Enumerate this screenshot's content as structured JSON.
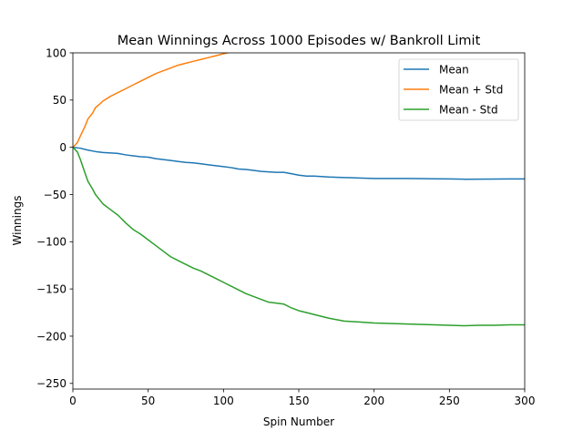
{
  "chart_data": {
    "type": "line",
    "title": "Mean Winnings Across 1000 Episodes w/ Bankroll Limit",
    "xlabel": "Spin Number",
    "ylabel": "Winnings",
    "xlim": [
      0,
      300
    ],
    "ylim": [
      -256,
      100
    ],
    "xticks": [
      0,
      50,
      100,
      150,
      200,
      250,
      300
    ],
    "yticks": [
      -250,
      -200,
      -150,
      -100,
      -50,
      0,
      50,
      100
    ],
    "xtick_labels": [
      "0",
      "50",
      "100",
      "150",
      "200",
      "250",
      "300"
    ],
    "ytick_labels": [
      "−250",
      "−200",
      "−150",
      "−100",
      "−50",
      "0",
      "50",
      "100"
    ],
    "grid": false,
    "legend_position": "upper right",
    "series": [
      {
        "name": "Mean",
        "color": "#1f77b4",
        "x": [
          0,
          5,
          10,
          15,
          20,
          25,
          30,
          35,
          40,
          45,
          50,
          55,
          60,
          65,
          70,
          75,
          80,
          85,
          90,
          95,
          100,
          105,
          110,
          115,
          120,
          125,
          130,
          135,
          140,
          145,
          150,
          155,
          160,
          170,
          180,
          190,
          200,
          210,
          220,
          230,
          240,
          250,
          260,
          270,
          280,
          290,
          300
        ],
        "y": [
          0,
          -1,
          -3,
          -4.5,
          -5.5,
          -6,
          -6.5,
          -8,
          -9,
          -10,
          -10.5,
          -12,
          -13,
          -14,
          -15,
          -16,
          -16.5,
          -17.5,
          -18.5,
          -19.5,
          -20.5,
          -21.5,
          -23,
          -23.5,
          -24.5,
          -25.5,
          -26,
          -26.5,
          -26.5,
          -28,
          -29.5,
          -30.5,
          -30.5,
          -31.5,
          -32,
          -32.5,
          -33,
          -33,
          -33,
          -33.2,
          -33.4,
          -33.5,
          -33.8,
          -33.7,
          -33.6,
          -33.5,
          -33.5
        ]
      },
      {
        "name": "Mean + Std",
        "color": "#ff7f0e",
        "x": [
          0,
          3,
          5,
          8,
          10,
          13,
          15,
          18,
          20,
          25,
          30,
          35,
          40,
          45,
          50,
          55,
          60,
          65,
          70,
          75,
          80,
          85,
          90,
          95,
          100,
          105
        ],
        "y": [
          0,
          5,
          12,
          22,
          30,
          36,
          42,
          46,
          49,
          54,
          58,
          62,
          66,
          70,
          74,
          78,
          81,
          84,
          87,
          89,
          91,
          93,
          95,
          97,
          99,
          101
        ]
      },
      {
        "name": "Mean - Std",
        "color": "#2ca02c",
        "x": [
          0,
          3,
          5,
          8,
          10,
          13,
          15,
          18,
          20,
          25,
          30,
          35,
          40,
          45,
          50,
          55,
          60,
          65,
          70,
          75,
          80,
          85,
          90,
          95,
          100,
          105,
          110,
          115,
          120,
          125,
          130,
          135,
          140,
          145,
          150,
          155,
          160,
          170,
          180,
          190,
          200,
          210,
          220,
          230,
          240,
          250,
          260,
          270,
          280,
          290,
          300
        ],
        "y": [
          0,
          -5,
          -13,
          -27,
          -36,
          -44,
          -50,
          -56,
          -60,
          -66,
          -72,
          -80,
          -87,
          -92,
          -98,
          -104,
          -110,
          -116,
          -120,
          -124,
          -128,
          -131,
          -135,
          -139,
          -143,
          -147,
          -151,
          -155,
          -158,
          -161,
          -164,
          -165,
          -166,
          -170,
          -173,
          -175,
          -177,
          -181,
          -184,
          -185,
          -186,
          -186.5,
          -187,
          -187.5,
          -188,
          -188.5,
          -189,
          -188.5,
          -188.5,
          -188,
          -188
        ]
      }
    ]
  }
}
